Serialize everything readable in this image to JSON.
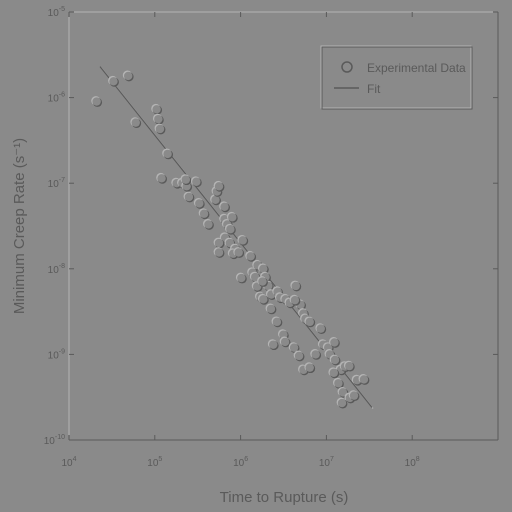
{
  "chart_data": {
    "type": "scatter",
    "xlabel": "Time to Rupture (s)",
    "ylabel": "Minimum Creep Rate (s⁻¹)",
    "x_scale": "log",
    "y_scale": "log",
    "xlim": [
      10000,
      1000000000
    ],
    "ylim": [
      1e-10,
      1e-05
    ],
    "x_ticks": [
      {
        "value": 10000,
        "base": "10",
        "exp": "4"
      },
      {
        "value": 100000,
        "base": "10",
        "exp": "5"
      },
      {
        "value": 1000000,
        "base": "10",
        "exp": "6"
      },
      {
        "value": 10000000,
        "base": "10",
        "exp": "7"
      },
      {
        "value": 100000000,
        "base": "10",
        "exp": "8"
      }
    ],
    "y_ticks": [
      {
        "value": 1e-05,
        "base": "10",
        "exp": "-5"
      },
      {
        "value": 1e-06,
        "base": "10",
        "exp": "-6"
      },
      {
        "value": 1e-07,
        "base": "10",
        "exp": "-7"
      },
      {
        "value": 1e-08,
        "base": "10",
        "exp": "-8"
      },
      {
        "value": 1e-09,
        "base": "10",
        "exp": "-9"
      },
      {
        "value": 1e-10,
        "base": "10",
        "exp": "-10"
      }
    ],
    "grid": false,
    "legend_position": "top-right",
    "series": [
      {
        "name": "Experimental Data",
        "kind": "scatter",
        "points": [
          [
            21000,
            9e-07
          ],
          [
            33000,
            1.55e-06
          ],
          [
            49000,
            1.79e-06
          ],
          [
            60000,
            5.1e-07
          ],
          [
            105000,
            7.3e-07
          ],
          [
            110000,
            5.6e-07
          ],
          [
            115000,
            4.3e-07
          ],
          [
            141000,
            2.2e-07
          ],
          [
            120000,
            1.14e-07
          ],
          [
            180000,
            1e-07
          ],
          [
            210000,
            1e-07
          ],
          [
            235000,
            9.2e-08
          ],
          [
            250000,
            6.9e-08
          ],
          [
            230000,
            1.1e-07
          ],
          [
            305000,
            1.04e-07
          ],
          [
            330000,
            5.8e-08
          ],
          [
            375000,
            4.4e-08
          ],
          [
            422000,
            3.3e-08
          ],
          [
            510000,
            6.4e-08
          ],
          [
            530000,
            8e-08
          ],
          [
            560000,
            9.2e-08
          ],
          [
            660000,
            2.3e-08
          ],
          [
            560000,
            2e-08
          ],
          [
            750000,
            2e-08
          ],
          [
            560000,
            1.55e-08
          ],
          [
            650000,
            3.8e-08
          ],
          [
            700000,
            3.3e-08
          ],
          [
            760000,
            2.9e-08
          ],
          [
            870000,
            1.7e-08
          ],
          [
            820000,
            1.5e-08
          ],
          [
            950000,
            1.55e-08
          ],
          [
            1060000,
            2.15e-08
          ],
          [
            1310000,
            1.4e-08
          ],
          [
            1580000,
            1.1e-08
          ],
          [
            1840000,
            1e-08
          ],
          [
            1950000,
            8e-09
          ],
          [
            2100000,
            6.3e-09
          ],
          [
            2280000,
            5e-09
          ],
          [
            2700000,
            5.4e-09
          ],
          [
            2900000,
            4.6e-09
          ],
          [
            3350000,
            4.4e-09
          ],
          [
            3750000,
            4e-09
          ],
          [
            4400000,
            6.3e-09
          ],
          [
            5000000,
            3.8e-09
          ],
          [
            5400000,
            3e-09
          ],
          [
            5700000,
            2.6e-09
          ],
          [
            6400000,
            2.4e-09
          ],
          [
            1380000,
            9e-09
          ],
          [
            1480000,
            8e-09
          ],
          [
            1560000,
            6.2e-09
          ],
          [
            1800000,
            7.1e-09
          ],
          [
            1020000,
            7.8e-09
          ],
          [
            1700000,
            4.7e-09
          ],
          [
            1840000,
            4.4e-09
          ],
          [
            2260000,
            3.4e-09
          ],
          [
            2650000,
            2.4e-09
          ],
          [
            3150000,
            1.7e-09
          ],
          [
            3300000,
            1.4e-09
          ],
          [
            4200000,
            1.2e-09
          ],
          [
            2400000,
            1.3e-09
          ],
          [
            4800000,
            9.6e-10
          ],
          [
            5400000,
            6.6e-10
          ],
          [
            6400000,
            7e-10
          ],
          [
            7500000,
            1e-09
          ],
          [
            8600000,
            2e-09
          ],
          [
            9200000,
            1.3e-09
          ],
          [
            10500000,
            1.2e-09
          ],
          [
            11000000,
            1e-09
          ],
          [
            12400000,
            1.38e-09
          ],
          [
            12600000,
            8.6e-10
          ],
          [
            14800000,
            6.6e-10
          ],
          [
            13800000,
            4.6e-10
          ],
          [
            16500000,
            7.2e-10
          ],
          [
            18500000,
            7.3e-10
          ],
          [
            22800000,
            5e-10
          ],
          [
            15600000,
            3.6e-10
          ],
          [
            15200000,
            2.7e-10
          ],
          [
            18800000,
            3.1e-10
          ],
          [
            21000000,
            3.3e-10
          ],
          [
            27400000,
            5.1e-10
          ],
          [
            12200000,
            6.1e-10
          ],
          [
            650000,
            5.3e-08
          ],
          [
            800000,
            4e-08
          ],
          [
            4300000,
            4.3e-09
          ]
        ]
      },
      {
        "name": "Fit",
        "kind": "line",
        "points": [
          [
            23000,
            2.3e-06
          ],
          [
            34000000,
            2.4e-10
          ]
        ]
      }
    ]
  }
}
